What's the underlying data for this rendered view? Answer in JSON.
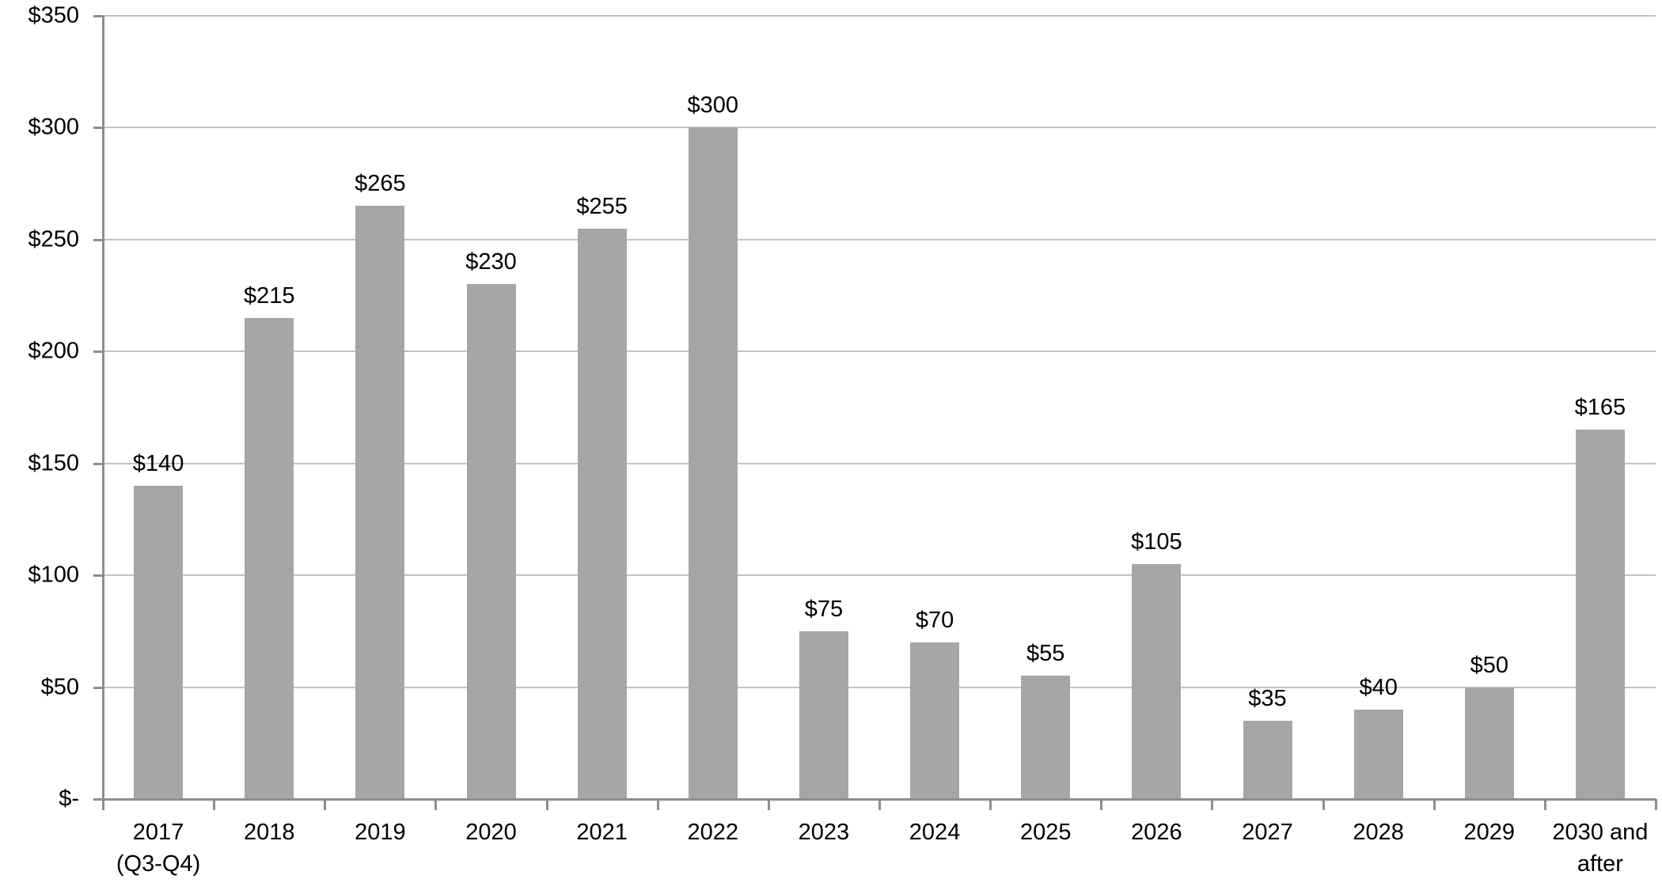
{
  "chart_data": {
    "type": "bar",
    "title": "",
    "xlabel": "",
    "ylabel": "",
    "categories": [
      "2017\n(Q3-Q4)",
      "2018",
      "2019",
      "2020",
      "2021",
      "2022",
      "2023",
      "2024",
      "2025",
      "2026",
      "2027",
      "2028",
      "2029",
      "2030 and\nafter"
    ],
    "values": [
      140,
      215,
      265,
      230,
      255,
      300,
      75,
      70,
      55,
      105,
      35,
      40,
      50,
      165
    ],
    "data_labels": [
      "$140",
      "$215",
      "$265",
      "$230",
      "$255",
      "$300",
      "$75",
      "$70",
      "$55",
      "$105",
      "$35",
      "$40",
      "$50",
      "$165"
    ],
    "ylim": [
      0,
      350
    ],
    "y_tick_interval": 50,
    "y_ticks": [
      {
        "value": 0,
        "label": "$-"
      },
      {
        "value": 50,
        "label": "$50"
      },
      {
        "value": 100,
        "label": "$100"
      },
      {
        "value": 150,
        "label": "$150"
      },
      {
        "value": 200,
        "label": "$200"
      },
      {
        "value": 250,
        "label": "$250"
      },
      {
        "value": 300,
        "label": "$300"
      },
      {
        "value": 350,
        "label": "$350"
      }
    ],
    "grid": true,
    "legend_position": "none",
    "colors": {
      "bar": "#a6a6a6",
      "gridline": "#c3c3c3",
      "axis": "#8e8e8e",
      "text": "#000000",
      "background": "#ffffff"
    }
  }
}
